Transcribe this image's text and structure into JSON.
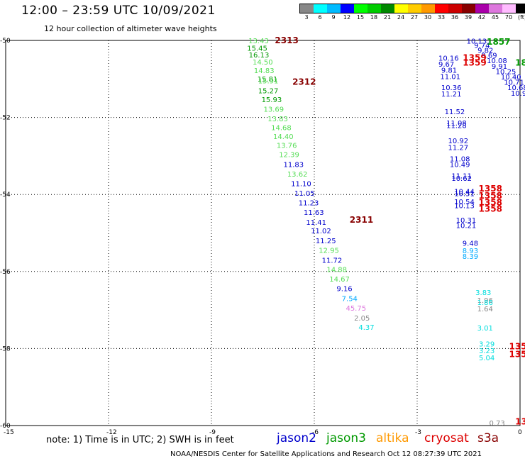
{
  "header": {
    "title": "12:00 – 23:59 UTC 10/09/2021",
    "subtitle": "12 hour collection of altimeter wave heights"
  },
  "color_scale": {
    "colors": [
      "#888888",
      "#00ffff",
      "#00bbff",
      "#0000ff",
      "#00ff00",
      "#00cc00",
      "#008800",
      "#ffff00",
      "#ffcc00",
      "#ff9900",
      "#ff0000",
      "#cc0000",
      "#880000",
      "#aa00aa",
      "#dd77dd",
      "#ffbbff",
      "#000000"
    ],
    "labels": [
      "3",
      "6",
      "9",
      "12",
      "15",
      "18",
      "21",
      "24",
      "27",
      "30",
      "33",
      "36",
      "39",
      "42",
      "45",
      "70",
      "(ft)"
    ]
  },
  "footer": {
    "note": "note: 1) Time is in UTC; 2) SWH is in feet",
    "credits": "NOAA/NESDIS Center for Satellite Applications and Research    Oct 12 08:27:39 UTC 2021"
  },
  "legend": [
    {
      "label": "jason2",
      "color": "#0000cc"
    },
    {
      "label": "jason3",
      "color": "#009900"
    },
    {
      "label": "altika",
      "color": "#ff9900"
    },
    {
      "label": "cryosat",
      "color": "#dd0000"
    },
    {
      "label": "s3a",
      "color": "#880000"
    }
  ],
  "chart_data": {
    "type": "scatter",
    "xlim": [
      -15,
      0
    ],
    "ylim": [
      -60,
      -50
    ],
    "xticks": [
      -15,
      -12,
      -9,
      -6,
      -3,
      0
    ],
    "yticks": [
      -50,
      -52,
      -54,
      -56,
      -58,
      -60
    ],
    "xtick_labels": [
      "-15",
      "-12",
      "-9",
      "-6",
      "-3",
      "0"
    ],
    "ytick_labels": [
      "-50",
      "-52",
      "-54",
      "-56",
      "-58",
      "-60"
    ],
    "grid": true,
    "points": [
      {
        "x": -7.92,
        "y": -50.0,
        "label": "13.43",
        "color": "#55dd55"
      },
      {
        "x": -7.96,
        "y": -50.19,
        "label": "15.45",
        "color": "#009900"
      },
      {
        "x": -7.91,
        "y": -50.37,
        "label": "16.13",
        "color": "#009900"
      },
      {
        "x": -7.8,
        "y": -50.55,
        "label": "14.50",
        "color": "#55dd55"
      },
      {
        "x": -7.76,
        "y": -50.77,
        "label": "14.83",
        "color": "#55dd55"
      },
      {
        "x": -7.66,
        "y": -50.99,
        "label": "15.81",
        "color": "#009900"
      },
      {
        "x": -7.64,
        "y": -51.04,
        "label": "15.91",
        "color": "#55dd55"
      },
      {
        "x": -7.64,
        "y": -51.3,
        "label": "15.27",
        "color": "#009900"
      },
      {
        "x": -7.54,
        "y": -51.53,
        "label": "15.93",
        "color": "#009900"
      },
      {
        "x": -7.48,
        "y": -51.78,
        "label": "13.69",
        "color": "#55dd55"
      },
      {
        "x": -7.36,
        "y": -52.03,
        "label": "13.83",
        "color": "#55dd55"
      },
      {
        "x": -7.26,
        "y": -52.26,
        "label": "14.68",
        "color": "#55dd55"
      },
      {
        "x": -7.2,
        "y": -52.49,
        "label": "14.40",
        "color": "#55dd55"
      },
      {
        "x": -7.1,
        "y": -52.72,
        "label": "13.76",
        "color": "#55dd55"
      },
      {
        "x": -7.03,
        "y": -52.96,
        "label": "12.39",
        "color": "#55dd55"
      },
      {
        "x": -6.9,
        "y": -53.21,
        "label": "11.83",
        "color": "#0000cc"
      },
      {
        "x": -6.79,
        "y": -53.46,
        "label": "13.62",
        "color": "#55dd55"
      },
      {
        "x": -6.68,
        "y": -53.71,
        "label": "11.10",
        "color": "#0000cc"
      },
      {
        "x": -6.58,
        "y": -53.96,
        "label": "11.05",
        "color": "#0000cc"
      },
      {
        "x": -6.46,
        "y": -54.21,
        "label": "11.23",
        "color": "#0000cc"
      },
      {
        "x": -6.31,
        "y": -54.46,
        "label": "11.63",
        "color": "#0000cc"
      },
      {
        "x": -6.24,
        "y": -54.71,
        "label": "11.41",
        "color": "#0000cc"
      },
      {
        "x": -6.1,
        "y": -54.94,
        "label": "11.02",
        "color": "#0000cc"
      },
      {
        "x": -5.96,
        "y": -55.19,
        "label": "11.25",
        "color": "#0000cc"
      },
      {
        "x": -5.87,
        "y": -55.44,
        "label": "12.95",
        "color": "#55dd55"
      },
      {
        "x": -5.78,
        "y": -55.7,
        "label": "11.72",
        "color": "#0000cc"
      },
      {
        "x": -5.64,
        "y": -55.94,
        "label": "14.88",
        "color": "#55dd55"
      },
      {
        "x": -5.56,
        "y": -56.19,
        "label": "14.67",
        "color": "#55dd55"
      },
      {
        "x": -5.35,
        "y": -56.44,
        "label": "9.16",
        "color": "#0000cc"
      },
      {
        "x": -5.2,
        "y": -56.69,
        "label": "7.54",
        "color": "#00aaff"
      },
      {
        "x": -5.08,
        "y": -56.94,
        "label": "45.75",
        "color": "#dd77dd"
      },
      {
        "x": -4.84,
        "y": -57.2,
        "label": "2.05",
        "color": "#888888"
      },
      {
        "x": -4.71,
        "y": -57.44,
        "label": "4.37",
        "color": "#00dddd"
      },
      {
        "x": -7.15,
        "y": -50.0,
        "label": "2313",
        "color": "#880000"
      },
      {
        "x": -6.64,
        "y": -51.08,
        "label": "2312",
        "color": "#880000"
      },
      {
        "x": -4.97,
        "y": -54.66,
        "label": "2311",
        "color": "#880000"
      },
      {
        "x": -1.56,
        "y": -50.01,
        "label": "10.13",
        "color": "#0000cc"
      },
      {
        "x": -1.34,
        "y": -50.12,
        "label": "9.74",
        "color": "#0000cc"
      },
      {
        "x": -1.24,
        "y": -50.25,
        "label": "9.82",
        "color": "#0000cc"
      },
      {
        "x": -1.13,
        "y": -50.38,
        "label": "9.69",
        "color": "#0000cc"
      },
      {
        "x": -0.97,
        "y": -50.52,
        "label": "10.08",
        "color": "#0000cc"
      },
      {
        "x": -0.83,
        "y": -50.66,
        "label": "9.91",
        "color": "#0000cc"
      },
      {
        "x": -0.71,
        "y": -50.8,
        "label": "10.25",
        "color": "#0000cc"
      },
      {
        "x": -0.56,
        "y": -50.94,
        "label": "10.40",
        "color": "#0000cc"
      },
      {
        "x": -0.47,
        "y": -51.08,
        "label": "10.71",
        "color": "#0000cc"
      },
      {
        "x": -0.37,
        "y": -51.22,
        "label": "10.68",
        "color": "#0000cc"
      },
      {
        "x": -0.27,
        "y": -51.36,
        "label": "10.96",
        "color": "#0000cc"
      },
      {
        "x": -2.38,
        "y": -50.45,
        "label": "10.16",
        "color": "#0000cc"
      },
      {
        "x": -2.38,
        "y": -50.61,
        "label": "9.67",
        "color": "#0000cc"
      },
      {
        "x": -2.3,
        "y": -50.76,
        "label": "9.81",
        "color": "#0000cc"
      },
      {
        "x": -2.33,
        "y": -50.93,
        "label": "11.01",
        "color": "#0000cc"
      },
      {
        "x": -2.3,
        "y": -51.22,
        "label": "10.36",
        "color": "#0000cc"
      },
      {
        "x": -2.3,
        "y": -51.38,
        "label": "11.21",
        "color": "#0000cc"
      },
      {
        "x": -2.2,
        "y": -51.84,
        "label": "11.52",
        "color": "#0000cc"
      },
      {
        "x": -2.15,
        "y": -52.14,
        "label": "11.08",
        "color": "#0000cc"
      },
      {
        "x": -2.15,
        "y": -52.2,
        "label": "11.28",
        "color": "#0000cc"
      },
      {
        "x": -2.1,
        "y": -52.6,
        "label": "10.92",
        "color": "#0000cc"
      },
      {
        "x": -2.1,
        "y": -52.77,
        "label": "11.27",
        "color": "#0000cc"
      },
      {
        "x": -2.05,
        "y": -53.07,
        "label": "11.08",
        "color": "#0000cc"
      },
      {
        "x": -2.05,
        "y": -53.21,
        "label": "10.49",
        "color": "#0000cc"
      },
      {
        "x": -2.0,
        "y": -53.51,
        "label": "11.11",
        "color": "#0000cc"
      },
      {
        "x": -2.0,
        "y": -53.57,
        "label": "10.62",
        "color": "#0000cc"
      },
      {
        "x": -1.92,
        "y": -53.91,
        "label": "10.44",
        "color": "#0000cc"
      },
      {
        "x": -1.92,
        "y": -53.97,
        "label": "10.51",
        "color": "#0000cc"
      },
      {
        "x": -1.92,
        "y": -54.18,
        "label": "10.54",
        "color": "#0000cc"
      },
      {
        "x": -1.92,
        "y": -54.28,
        "label": "10.13",
        "color": "#0000cc"
      },
      {
        "x": -1.87,
        "y": -54.66,
        "label": "10.31",
        "color": "#0000cc"
      },
      {
        "x": -1.87,
        "y": -54.8,
        "label": "10.21",
        "color": "#0000cc"
      },
      {
        "x": -1.68,
        "y": -55.26,
        "label": "9.48",
        "color": "#0000cc"
      },
      {
        "x": -1.68,
        "y": -55.45,
        "label": "8.93",
        "color": "#00aaff"
      },
      {
        "x": -1.68,
        "y": -55.6,
        "label": "8.39",
        "color": "#00aaff"
      },
      {
        "x": -1.3,
        "y": -56.54,
        "label": "3.83",
        "color": "#00dddd"
      },
      {
        "x": -1.25,
        "y": -56.74,
        "label": "1.96",
        "color": "#888888"
      },
      {
        "x": -1.25,
        "y": -56.8,
        "label": "1.86",
        "color": "#00dddd"
      },
      {
        "x": -1.25,
        "y": -56.96,
        "label": "1.64",
        "color": "#888888"
      },
      {
        "x": -1.25,
        "y": -57.46,
        "label": "3.01",
        "color": "#00dddd"
      },
      {
        "x": -1.2,
        "y": -57.87,
        "label": "3.29",
        "color": "#00dddd"
      },
      {
        "x": -1.2,
        "y": -58.05,
        "label": "3.23",
        "color": "#00dddd"
      },
      {
        "x": -1.2,
        "y": -58.23,
        "label": "5.04",
        "color": "#00dddd"
      },
      {
        "x": -0.9,
        "y": -59.93,
        "label": "0.73",
        "color": "#888888"
      },
      {
        "x": -0.97,
        "y": -50.04,
        "label": "1857",
        "color": "#009900"
      },
      {
        "x": -0.14,
        "y": -50.58,
        "label": "18",
        "color": "#009900"
      },
      {
        "x": -1.67,
        "y": -50.45,
        "label": "1359",
        "color": "#dd0000"
      },
      {
        "x": -1.67,
        "y": -50.58,
        "label": "1359",
        "color": "#dd0000"
      },
      {
        "x": -1.21,
        "y": -53.85,
        "label": "1358",
        "color": "#dd0000"
      },
      {
        "x": -1.21,
        "y": -54.03,
        "label": "1358",
        "color": "#dd0000"
      },
      {
        "x": -1.21,
        "y": -54.21,
        "label": "1358",
        "color": "#dd0000"
      },
      {
        "x": -1.21,
        "y": -54.37,
        "label": "1358",
        "color": "#dd0000"
      },
      {
        "x": -0.32,
        "y": -57.95,
        "label": "135",
        "color": "#dd0000"
      },
      {
        "x": -0.32,
        "y": -58.15,
        "label": "135",
        "color": "#dd0000"
      },
      {
        "x": -0.14,
        "y": -59.9,
        "label": "13",
        "color": "#dd0000"
      }
    ]
  }
}
